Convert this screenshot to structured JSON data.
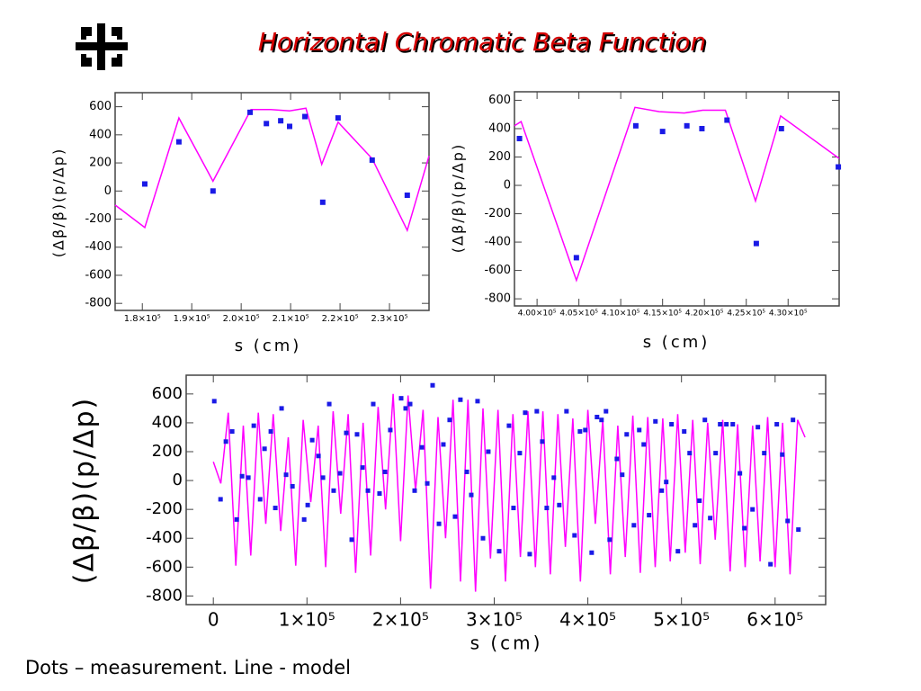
{
  "title": "Horizontal Chromatic Beta Function",
  "caption": "Dots – measurement. Line - model",
  "chart_data": [
    {
      "type": "line",
      "xlabel": "s (cm)",
      "ylabel": "(Δβ/β)(p/Δp)",
      "xlim": [
        174500,
        238000
      ],
      "ylim": [
        -850,
        700
      ],
      "xticks": [
        {
          "value": 180000,
          "label": "1.8×10⁵"
        },
        {
          "value": 190000,
          "label": "1.9×10⁵"
        },
        {
          "value": 200000,
          "label": "2.0×10⁵"
        },
        {
          "value": 210000,
          "label": "2.1×10⁵"
        },
        {
          "value": 220000,
          "label": "2.2×10⁵"
        },
        {
          "value": 230000,
          "label": "2.3×10⁵"
        }
      ],
      "yticks": [
        600,
        400,
        200,
        0,
        -200,
        -400,
        -600,
        -800
      ],
      "series": [
        {
          "type": "line",
          "color": "#ff00ff",
          "x": [
            174500,
            180500,
            187400,
            194300,
            202000,
            206000,
            209800,
            213100,
            216300,
            219600,
            226500,
            233600,
            238000
          ],
          "values": [
            -100,
            -260,
            520,
            70,
            580,
            580,
            570,
            590,
            190,
            490,
            230,
            -280,
            250
          ]
        },
        {
          "type": "scatter",
          "color": "#1a1ae6",
          "x": [
            180500,
            187400,
            194300,
            201800,
            205100,
            208000,
            209800,
            212900,
            216500,
            219600,
            226500,
            233600
          ],
          "values": [
            50,
            350,
            0,
            560,
            480,
            500,
            460,
            530,
            -80,
            520,
            220,
            -30
          ]
        }
      ]
    },
    {
      "type": "line",
      "xlabel": "s (cm)",
      "ylabel": "(Δβ/β)(p/Δp)",
      "xlim": [
        397300,
        436100
      ],
      "ylim": [
        -850,
        660
      ],
      "xticks": [
        {
          "value": 400000,
          "label": "4.00×10⁵"
        },
        {
          "value": 405000,
          "label": "4.05×10⁵"
        },
        {
          "value": 410000,
          "label": "4.10×10⁵"
        },
        {
          "value": 415000,
          "label": "4.15×10⁵"
        },
        {
          "value": 420000,
          "label": "4.20×10⁵"
        },
        {
          "value": 425000,
          "label": "4.25×10⁵"
        },
        {
          "value": 430000,
          "label": "4.30×10⁵"
        }
      ],
      "yticks": [
        600,
        400,
        200,
        0,
        -200,
        -400,
        -600,
        -800
      ],
      "series": [
        {
          "type": "line",
          "color": "#ff00ff",
          "x": [
            397300,
            398100,
            404700,
            411700,
            414600,
            417600,
            419800,
            422500,
            426100,
            429100,
            436100
          ],
          "values": [
            420,
            450,
            -670,
            550,
            520,
            510,
            530,
            530,
            -110,
            490,
            190
          ]
        },
        {
          "type": "scatter",
          "color": "#1a1ae6",
          "x": [
            397900,
            404700,
            411800,
            415000,
            417900,
            419700,
            422700,
            426200,
            429200,
            436000
          ],
          "values": [
            330,
            -510,
            420,
            380,
            420,
            400,
            460,
            -410,
            400,
            130
          ]
        }
      ]
    },
    {
      "type": "line",
      "xlabel": "s (cm)",
      "ylabel": "(Δβ/β)(p/Δp)",
      "xlim": [
        -29000,
        654000
      ],
      "ylim": [
        -860,
        730
      ],
      "xticks": [
        0,
        {
          "value": 100000,
          "label": "1×10⁵"
        },
        {
          "value": 200000,
          "label": "2×10⁵"
        },
        {
          "value": 300000,
          "label": "3×10⁵"
        },
        {
          "value": 400000,
          "label": "4×10⁵"
        },
        {
          "value": 500000,
          "label": "5×10⁵"
        },
        {
          "value": 600000,
          "label": "6×10⁵"
        }
      ],
      "yticks": [
        600,
        400,
        200,
        0,
        -200,
        -400,
        -600,
        -800
      ],
      "series": [
        {
          "type": "line",
          "color": "#ff00ff",
          "x": [
            0,
            8000,
            16000,
            24000,
            32000,
            40000,
            48000,
            56000,
            64000,
            72000,
            80000,
            88000,
            96000,
            104000,
            112000,
            120000,
            128000,
            136000,
            144000,
            152000,
            160000,
            168000,
            176000,
            184000,
            192000,
            200000,
            208000,
            216000,
            224000,
            232000,
            240000,
            248000,
            256000,
            264000,
            272000,
            280000,
            288000,
            296000,
            304000,
            312000,
            320000,
            328000,
            336000,
            344000,
            352000,
            360000,
            368000,
            376000,
            384000,
            392000,
            400000,
            408000,
            416000,
            424000,
            432000,
            440000,
            448000,
            456000,
            464000,
            472000,
            480000,
            488000,
            496000,
            504000,
            512000,
            520000,
            528000,
            536000,
            544000,
            552000,
            560000,
            568000,
            576000,
            584000,
            592000,
            600000,
            608000,
            616000,
            624000,
            632000
          ],
          "values": [
            130,
            -20,
            470,
            -590,
            380,
            -520,
            470,
            -300,
            460,
            -350,
            300,
            -590,
            420,
            -150,
            380,
            -600,
            480,
            -230,
            460,
            -640,
            400,
            -520,
            510,
            -200,
            600,
            -420,
            590,
            -70,
            490,
            -750,
            440,
            -400,
            560,
            -700,
            560,
            -770,
            500,
            -540,
            490,
            -700,
            460,
            -530,
            480,
            -600,
            480,
            -650,
            460,
            -460,
            430,
            -700,
            490,
            -300,
            420,
            -650,
            380,
            -530,
            450,
            -640,
            440,
            -600,
            430,
            -560,
            460,
            -500,
            420,
            -580,
            400,
            -410,
            420,
            -630,
            390,
            -600,
            380,
            -560,
            440,
            -600,
            400,
            -650,
            420,
            300
          ]
        },
        {
          "type": "scatter",
          "color": "#1a1ae6",
          "x": [
            1000,
            7700,
            13400,
            20100,
            25000,
            30700,
            37400,
            43200,
            50000,
            54700,
            61400,
            66200,
            72900,
            77700,
            84500,
            97000,
            100800,
            105600,
            112300,
            117100,
            123800,
            128500,
            135300,
            142000,
            147800,
            153500,
            159300,
            165100,
            170800,
            177500,
            183300,
            189000,
            200600,
            205400,
            210200,
            215000,
            222700,
            228500,
            234200,
            241000,
            245700,
            252400,
            258200,
            263900,
            270700,
            275500,
            282200,
            288000,
            293700,
            305300,
            315800,
            320600,
            327300,
            333100,
            337900,
            345500,
            351300,
            356100,
            363700,
            369500,
            377200,
            385800,
            391600,
            397300,
            404100,
            409800,
            414600,
            419400,
            423300,
            431000,
            436700,
            441500,
            449200,
            454900,
            459700,
            465400,
            472200,
            478900,
            483700,
            489400,
            496200,
            502900,
            508700,
            514400,
            519200,
            525000,
            530700,
            536500,
            541300,
            548000,
            554800,
            562400,
            567200,
            575900,
            581600,
            588400,
            595100,
            601800,
            607600,
            613400,
            619100,
            624900
          ],
          "values": [
            550,
            -130,
            270,
            340,
            -270,
            30,
            20,
            380,
            -130,
            220,
            340,
            -190,
            500,
            40,
            -40,
            -270,
            -170,
            280,
            170,
            20,
            530,
            -70,
            50,
            330,
            -410,
            320,
            90,
            -70,
            530,
            -90,
            60,
            350,
            570,
            500,
            530,
            -70,
            230,
            -20,
            660,
            -300,
            250,
            420,
            -250,
            560,
            60,
            -100,
            550,
            -400,
            200,
            -490,
            380,
            -190,
            190,
            470,
            -510,
            480,
            270,
            -190,
            20,
            -170,
            480,
            -380,
            340,
            350,
            -500,
            440,
            420,
            480,
            -410,
            150,
            40,
            320,
            -310,
            350,
            250,
            -240,
            410,
            -70,
            -10,
            390,
            -490,
            340,
            190,
            -310,
            -140,
            420,
            -260,
            190,
            390,
            390,
            390,
            50,
            -330,
            -200,
            370,
            190,
            -580,
            390,
            180,
            -280,
            420,
            -340
          ]
        }
      ]
    }
  ]
}
